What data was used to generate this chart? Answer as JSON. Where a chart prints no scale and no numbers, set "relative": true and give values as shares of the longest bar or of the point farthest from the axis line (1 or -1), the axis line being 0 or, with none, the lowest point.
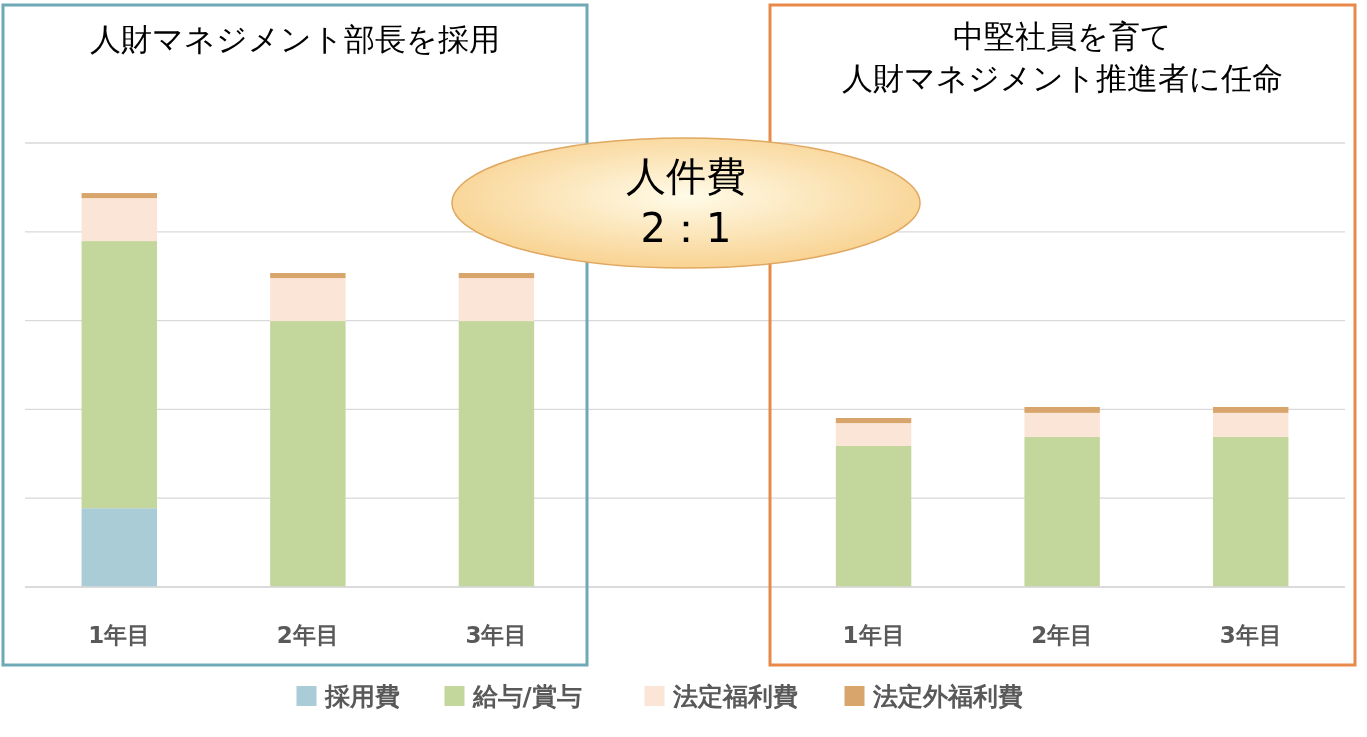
{
  "chart_data": {
    "type": "bar",
    "stacked": true,
    "relative": true,
    "grid": true,
    "legend": "bottom",
    "categories": [
      "1年目",
      "2年目",
      "3年目",
      null,
      "1年目",
      "2年目",
      "3年目"
    ],
    "series": [
      {
        "name": "採用費",
        "color": "#a9ccd6",
        "values": [
          0.2,
          0,
          0,
          null,
          0,
          0,
          0
        ]
      },
      {
        "name": "給与/賞与",
        "color": "#c3d69b",
        "values": [
          0.678,
          0.675,
          0.675,
          null,
          0.358,
          0.381,
          0.381
        ]
      },
      {
        "name": "法定福利費",
        "color": "#fbe5d6",
        "values": [
          0.109,
          0.109,
          0.109,
          null,
          0.058,
          0.061,
          0.061
        ]
      },
      {
        "name": "法定外福利費",
        "color": "#d8a56d",
        "values": [
          0.013,
          0.013,
          0.013,
          null,
          0.013,
          0.015,
          0.015
        ]
      }
    ],
    "annotations": [
      "人財マネジメント部長を採用",
      "中堅社員を育て",
      "人財マネジメント推進者に任命",
      "人件費",
      "2：1"
    ]
  }
}
